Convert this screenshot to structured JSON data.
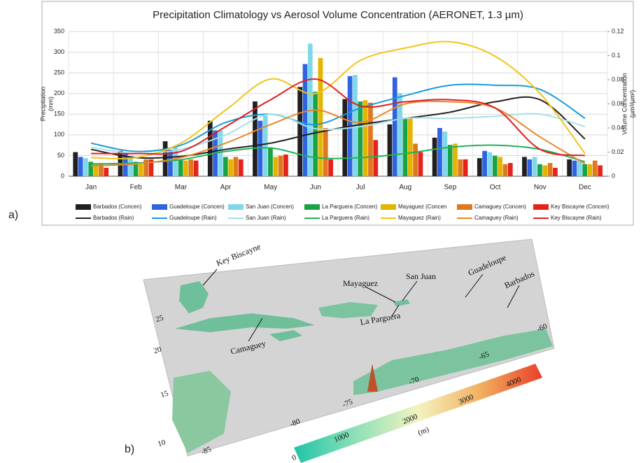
{
  "chart_data": {
    "type": "combo",
    "title": "Precipitation Climatology vs Aerosol Volume Concentration (AERONET, 1.3 µm)",
    "ylabel": [
      "Precipitation",
      "(mm)"
    ],
    "y2label": [
      "Volume Concentration",
      "(µm³/µm²)"
    ],
    "categories": [
      "Jan",
      "Feb",
      "Mar",
      "Apr",
      "May",
      "Jun",
      "Jul",
      "Aug",
      "Sep",
      "Oct",
      "Nov",
      "Dec"
    ],
    "ylim": [
      0,
      350
    ],
    "yticks": [
      0,
      50,
      100,
      150,
      200,
      250,
      300,
      350
    ],
    "y2lim": [
      0,
      0.12
    ],
    "y2ticks": [
      0,
      0.02,
      0.04,
      0.06,
      0.08,
      0.1,
      0.12
    ],
    "grid": true,
    "series": [
      {
        "name": "Barbados (Concen)",
        "type": "bar",
        "axis": "y2",
        "color": "#231f20",
        "values": [
          0.02,
          0.021,
          0.029,
          0.046,
          0.062,
          0.074,
          0.064,
          0.043,
          0.032,
          0.015,
          0.016,
          0.014
        ]
      },
      {
        "name": "Guadeloupe (Concen)",
        "type": "bar",
        "axis": "y2",
        "color": "#2f64e0",
        "values": [
          0.016,
          0.019,
          0.022,
          0.038,
          0.046,
          0.093,
          0.083,
          0.082,
          0.04,
          0.021,
          0.014,
          0.013
        ]
      },
      {
        "name": "San Juan (Concen)",
        "type": "bar",
        "axis": "y2",
        "color": "#7fd8ea",
        "values": [
          0.015,
          0.017,
          0.024,
          0.038,
          0.051,
          0.11,
          0.084,
          0.069,
          0.037,
          0.02,
          0.016,
          0.013
        ]
      },
      {
        "name": "La Parguera (Concen)",
        "type": "bar",
        "axis": "y2",
        "color": "#18a347",
        "values": [
          0.012,
          0.012,
          0.014,
          0.016,
          0.024,
          0.07,
          0.062,
          0.048,
          0.026,
          0.017,
          0.01,
          0.01
        ]
      },
      {
        "name": "Mayaguez (Concen",
        "type": "bar",
        "axis": "y2",
        "color": "#e3b400",
        "values": [
          0.01,
          0.01,
          0.013,
          0.014,
          0.016,
          0.098,
          0.063,
          0.048,
          0.027,
          0.016,
          0.009,
          0.01
        ]
      },
      {
        "name": "Camaguey (Concen)",
        "type": "bar",
        "axis": "y2",
        "color": "#e0781e",
        "values": [
          0.01,
          0.014,
          0.014,
          0.016,
          0.017,
          0.04,
          0.061,
          0.027,
          0.014,
          0.01,
          0.011,
          0.013
        ]
      },
      {
        "name": "Key Biscayne (Concen)",
        "type": "bar",
        "axis": "y2",
        "color": "#e5231b",
        "values": [
          0.007,
          0.014,
          0.013,
          0.014,
          0.018,
          0.014,
          0.03,
          0.02,
          0.014,
          0.011,
          0.007,
          0.009
        ]
      },
      {
        "name": "Barbados (Rain)",
        "type": "line",
        "color": "#231f20",
        "values": [
          65,
          45,
          48,
          65,
          80,
          105,
          125,
          140,
          155,
          180,
          185,
          90
        ]
      },
      {
        "name": "Guadeloupe (Rain)",
        "type": "line",
        "color": "#1a9bd7",
        "values": [
          80,
          60,
          75,
          130,
          150,
          125,
          165,
          195,
          220,
          220,
          210,
          140
        ]
      },
      {
        "name": "San Juan (Rain)",
        "type": "line",
        "color": "#a6e0ec",
        "values": [
          70,
          55,
          65,
          100,
          150,
          115,
          120,
          140,
          140,
          145,
          150,
          120
        ]
      },
      {
        "name": "La Parguera (Rain)",
        "type": "line",
        "color": "#1fb35a",
        "values": [
          30,
          32,
          40,
          60,
          68,
          45,
          45,
          55,
          70,
          75,
          65,
          35
        ]
      },
      {
        "name": "Mayaguez (Rain)",
        "type": "line",
        "color": "#f2c418",
        "values": [
          45,
          45,
          80,
          160,
          235,
          200,
          280,
          310,
          325,
          290,
          200,
          55
        ]
      },
      {
        "name": "Camaguey (Rain)",
        "type": "line",
        "color": "#e8872a",
        "values": [
          25,
          30,
          45,
          80,
          125,
          160,
          130,
          175,
          180,
          165,
          95,
          30
        ]
      },
      {
        "name": "Key Biscayne (Rain)",
        "type": "line",
        "color": "#e02020",
        "values": [
          55,
          55,
          60,
          120,
          185,
          235,
          170,
          180,
          185,
          165,
          65,
          50
        ]
      }
    ]
  },
  "panel_labels": [
    "a)",
    "b)"
  ],
  "map": {
    "places": [
      "Key Biscayne",
      "Mayaguez",
      "San Juan",
      "La Parguera",
      "Guadeloupe",
      "Barbados",
      "Camaguey"
    ],
    "lat_ticks": [
      "25",
      "20",
      "15",
      "10"
    ],
    "lon_ticks": [
      "-85",
      "-80",
      "-75",
      "-70",
      "-65",
      "-60"
    ],
    "colorbar_ticks": [
      "0",
      "1000",
      "2000",
      "3000",
      "4000"
    ],
    "colorbar_unit": "(m)"
  }
}
